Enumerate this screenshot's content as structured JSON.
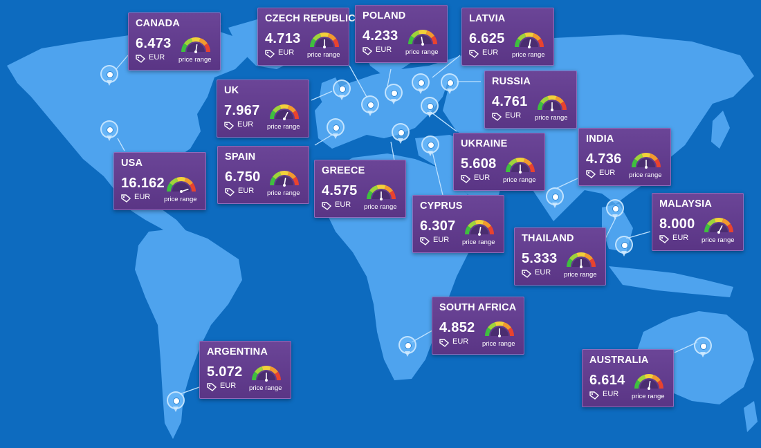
{
  "map": {
    "background_color": "#0d6bbf",
    "land_color": "#4ea3ee",
    "card_color": "#5f3b8c",
    "pin_icon": "location-pin-icon",
    "price_tag_icon": "price-tag-icon",
    "gauge_icon": "price-gauge-icon"
  },
  "countries": [
    {
      "id": "canada",
      "name": "CANADA",
      "price": "6.473",
      "currency": "EUR",
      "gauge_label": "price range",
      "gauge_level": 0.55
    },
    {
      "id": "czech-republic",
      "name": "CZECH REPUBLIC",
      "price": "4.713",
      "currency": "EUR",
      "gauge_label": "price range",
      "gauge_level": 0.5
    },
    {
      "id": "poland",
      "name": "POLAND",
      "price": "4.233",
      "currency": "EUR",
      "gauge_label": "price range",
      "gauge_level": 0.45
    },
    {
      "id": "latvia",
      "name": "LATVIA",
      "price": "6.625",
      "currency": "EUR",
      "gauge_label": "price range",
      "gauge_level": 0.55
    },
    {
      "id": "uk",
      "name": "UK",
      "price": "7.967",
      "currency": "EUR",
      "gauge_label": "price range",
      "gauge_level": 0.65
    },
    {
      "id": "russia",
      "name": "RUSSIA",
      "price": "4.761",
      "currency": "EUR",
      "gauge_label": "price range",
      "gauge_level": 0.5
    },
    {
      "id": "usa",
      "name": "USA",
      "price": "16.162",
      "currency": "EUR",
      "gauge_label": "price range",
      "gauge_level": 0.9
    },
    {
      "id": "spain",
      "name": "SPAIN",
      "price": "6.750",
      "currency": "EUR",
      "gauge_label": "price range",
      "gauge_level": 0.55
    },
    {
      "id": "greece",
      "name": "GREECE",
      "price": "4.575",
      "currency": "EUR",
      "gauge_label": "price range",
      "gauge_level": 0.5
    },
    {
      "id": "ukraine",
      "name": "UKRAINE",
      "price": "5.608",
      "currency": "EUR",
      "gauge_label": "price range",
      "gauge_level": 0.5
    },
    {
      "id": "india",
      "name": "INDIA",
      "price": "4.736",
      "currency": "EUR",
      "gauge_label": "price range",
      "gauge_level": 0.5
    },
    {
      "id": "cyprus",
      "name": "CYPRUS",
      "price": "6.307",
      "currency": "EUR",
      "gauge_label": "price range",
      "gauge_level": 0.55
    },
    {
      "id": "malaysia",
      "name": "MALAYSIA",
      "price": "8.000",
      "currency": "EUR",
      "gauge_label": "price range",
      "gauge_level": 0.65
    },
    {
      "id": "thailand",
      "name": "THAILAND",
      "price": "5.333",
      "currency": "EUR",
      "gauge_label": "price range",
      "gauge_level": 0.5
    },
    {
      "id": "south-africa",
      "name": "SOUTH AFRICA",
      "price": "4.852",
      "currency": "EUR",
      "gauge_label": "price range",
      "gauge_level": 0.5
    },
    {
      "id": "argentina",
      "name": "ARGENTINA",
      "price": "5.072",
      "currency": "EUR",
      "gauge_label": "price range",
      "gauge_level": 0.5
    },
    {
      "id": "australia",
      "name": "AUSTRALIA",
      "price": "6.614",
      "currency": "EUR",
      "gauge_label": "price range",
      "gauge_level": 0.55
    }
  ]
}
